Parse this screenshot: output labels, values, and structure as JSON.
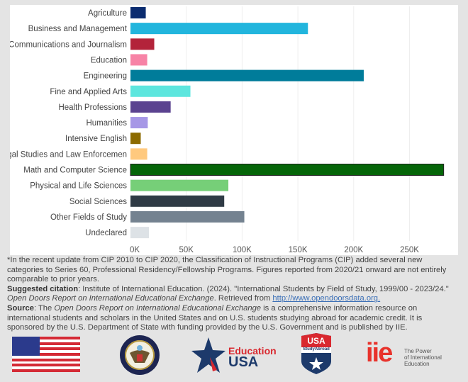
{
  "chart_data": {
    "type": "bar",
    "orientation": "horizontal",
    "categories": [
      "Agriculture",
      "Business and Management",
      "Communications and Journalism",
      "Education",
      "Engineering",
      "Fine and Applied Arts",
      "Health Professions",
      "Humanities",
      "Intensive English",
      "Legal Studies and Law Enforcemen",
      "Math and Computer Science",
      "Physical and Life Sciences",
      "Social Sciences",
      "Other Fields of Study",
      "Undeclared"
    ],
    "values": [
      13700,
      159000,
      21300,
      15000,
      209000,
      53700,
      36000,
      15500,
      9200,
      15000,
      280600,
      87700,
      84000,
      102000,
      16600
    ],
    "colors": [
      "#0b2c70",
      "#22b5dd",
      "#b3233a",
      "#f783a6",
      "#007c9a",
      "#5de6de",
      "#5b4390",
      "#a697e6",
      "#8c6a00",
      "#ffc97e",
      "#056508",
      "#76cf78",
      "#2f3b45",
      "#748290",
      "#dde2e6"
    ],
    "xticks": [
      "0K",
      "50K",
      "100K",
      "150K",
      "200K",
      "250K"
    ],
    "xtick_values": [
      0,
      50000,
      100000,
      150000,
      200000,
      250000
    ],
    "xlim": [
      0,
      285000
    ],
    "grid": true
  },
  "notes": {
    "footnote": "*In the recent update from CIP 2010 to CIP 2020, the Classification of Instructional Programs (CIP) added several new categories to Series 60, Professional Residency/Fellowship Programs. Figures reported from 2020/21 onward are not entirely comparable to prior years.",
    "citation_label": "Suggested citation",
    "citation_text": ": Institute of International Education. (2024). \"International Students by Field of Study, 1999/00 - 2023/24.\" ",
    "citation_italic": "Open Doors Report on International Educational Exchange",
    "citation_retrieved": ". Retrieved from ",
    "citation_link": "http://www.opendoorsdata.org.",
    "source_label": "Source",
    "source_pre": ": The ",
    "source_italic": "Open Doors Report on International Educational Exchange",
    "source_text": " is a comprehensive information resource on international students and scholars in the United States and on U.S. students studying abroad for academic credit. It is sponsored by the U.S. Department of State with funding provided by the U.S. Government and is published by IIE."
  },
  "logos": {
    "education_usa_1": "Education",
    "education_usa_2": "USA",
    "study_abroad_top": "USA",
    "study_abroad_mid": "StudyAbroad",
    "iie": "iie",
    "iie_tag_1": "The Power",
    "iie_tag_2": "of International",
    "iie_tag_3": "Education"
  }
}
